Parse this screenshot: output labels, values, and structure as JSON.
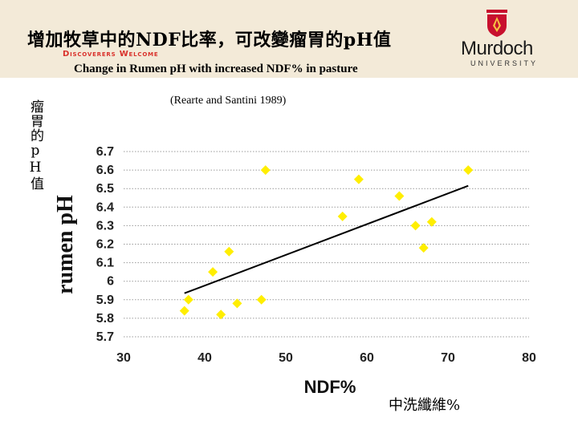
{
  "header": {
    "title": "增加牧草中的NDF比率，可改變瘤胃的pH值",
    "tagline": "Discoverers Welcome",
    "subtitle": "Change in Rumen pH with increased NDF% in pasture",
    "logo_name": "Murdoch",
    "logo_sub": "UNIVERSITY"
  },
  "citation": "(Rearte and Santini 1989)",
  "cn_ylabel": "瘤胃的pH值",
  "cn_xlabel": "中洗纖維%",
  "colors": {
    "points": "#ffee00",
    "trend": "#000000",
    "grid": "#9a9a9a",
    "header_bg": "#f3ead8",
    "tagline": "#d9302a"
  },
  "chart_data": {
    "type": "scatter",
    "xlabel": "NDF%",
    "ylabel": "rumen pH",
    "xlim": [
      30,
      80
    ],
    "ylim": [
      5.7,
      6.7
    ],
    "xticks": [
      "30",
      "40",
      "50",
      "60",
      "70",
      "80"
    ],
    "yticks": [
      "5.7",
      "5.8",
      "5.9",
      "6",
      "6.1",
      "6.2",
      "6.3",
      "6.4",
      "6.5",
      "6.6",
      "6.7"
    ],
    "grid": "horizontal dotted",
    "marker": "yellow diamond",
    "points": [
      {
        "x": 37.5,
        "y": 5.84
      },
      {
        "x": 38.0,
        "y": 5.9
      },
      {
        "x": 41.0,
        "y": 6.05
      },
      {
        "x": 42.0,
        "y": 5.82
      },
      {
        "x": 43.0,
        "y": 6.16
      },
      {
        "x": 44.0,
        "y": 5.88
      },
      {
        "x": 47.0,
        "y": 5.9
      },
      {
        "x": 47.5,
        "y": 6.6
      },
      {
        "x": 57.0,
        "y": 6.35
      },
      {
        "x": 59.0,
        "y": 6.55
      },
      {
        "x": 64.0,
        "y": 6.46
      },
      {
        "x": 66.0,
        "y": 6.3
      },
      {
        "x": 67.0,
        "y": 6.18
      },
      {
        "x": 68.0,
        "y": 6.32
      },
      {
        "x": 72.5,
        "y": 6.6
      }
    ],
    "trendline": {
      "x1": 37.5,
      "y1": 5.935,
      "x2": 72.5,
      "y2": 6.515
    }
  }
}
